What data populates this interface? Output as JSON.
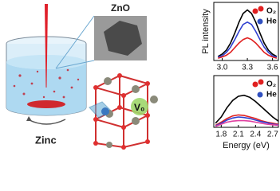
{
  "labels": {
    "zno": "ZnO",
    "zinc": "Zinc",
    "vacancy": "V₀"
  },
  "chart_data": [
    {
      "type": "line",
      "ylabel": "PL intensity",
      "x": [
        2.95,
        3.0,
        3.05,
        3.1,
        3.15,
        3.2,
        3.25,
        3.3,
        3.35,
        3.4,
        3.45,
        3.5,
        3.55,
        3.6,
        3.65
      ],
      "xlim": [
        2.9,
        3.67
      ],
      "ylim": [
        0,
        1
      ],
      "xticks": [
        {
          "value": 3.0,
          "label": "3.0"
        },
        3.3,
        3.6
      ],
      "legend": [
        {
          "label": "O₂",
          "color": "#e02020"
        },
        {
          "label": "He",
          "color": "#3050c0"
        }
      ],
      "series": [
        {
          "color": "#000000",
          "values": [
            0.07,
            0.11,
            0.18,
            0.3,
            0.47,
            0.66,
            0.81,
            0.87,
            0.81,
            0.66,
            0.47,
            0.3,
            0.18,
            0.11,
            0.07
          ]
        },
        {
          "color": "#3040d0",
          "values": [
            0.06,
            0.08,
            0.14,
            0.23,
            0.36,
            0.5,
            0.62,
            0.66,
            0.62,
            0.5,
            0.36,
            0.23,
            0.14,
            0.08,
            0.06
          ]
        },
        {
          "color": "#e02020",
          "values": [
            0.04,
            0.06,
            0.09,
            0.14,
            0.22,
            0.3,
            0.36,
            0.39,
            0.36,
            0.3,
            0.22,
            0.14,
            0.09,
            0.06,
            0.04
          ]
        }
      ]
    },
    {
      "type": "line",
      "xlabel": "Energy (eV)",
      "x": [
        1.7,
        1.8,
        1.9,
        2.0,
        2.1,
        2.2,
        2.3,
        2.4,
        2.5,
        2.6,
        2.7,
        2.8
      ],
      "xlim": [
        1.67,
        2.8
      ],
      "ylim": [
        0,
        1
      ],
      "xticks": [
        1.8,
        2.1,
        2.4,
        2.7
      ],
      "legend": [
        {
          "label": "O₂",
          "color": "#e02020"
        },
        {
          "label": "He",
          "color": "#3050c0"
        }
      ],
      "series": [
        {
          "color": "#000000",
          "values": [
            0.08,
            0.2,
            0.38,
            0.52,
            0.6,
            0.62,
            0.58,
            0.5,
            0.4,
            0.3,
            0.2,
            0.12
          ]
        },
        {
          "color": "#e02020",
          "values": [
            0.04,
            0.1,
            0.17,
            0.22,
            0.24,
            0.23,
            0.2,
            0.17,
            0.13,
            0.1,
            0.08,
            0.06
          ]
        },
        {
          "color": "#3040d0",
          "values": [
            0.03,
            0.08,
            0.14,
            0.18,
            0.2,
            0.19,
            0.17,
            0.14,
            0.11,
            0.09,
            0.06,
            0.05
          ]
        },
        {
          "color": "#e040a0",
          "values": [
            0.02,
            0.06,
            0.1,
            0.12,
            0.13,
            0.13,
            0.12,
            0.1,
            0.08,
            0.06,
            0.05,
            0.04
          ]
        }
      ]
    }
  ]
}
